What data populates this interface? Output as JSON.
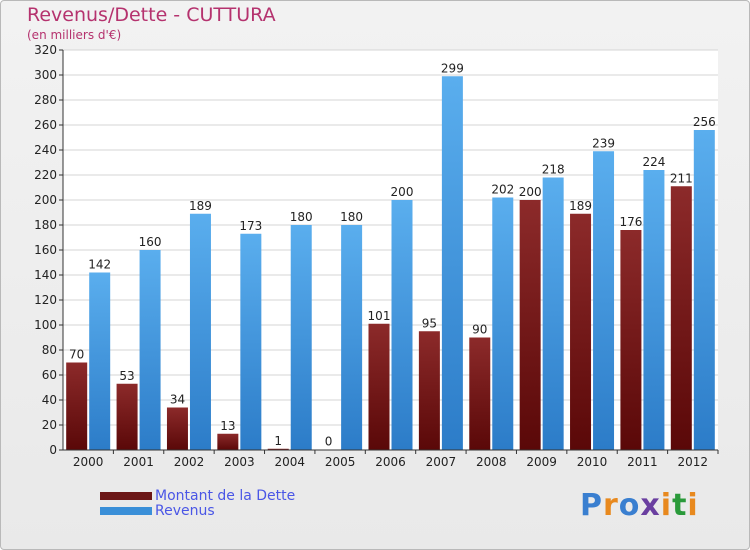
{
  "title": "Revenus/Dette - CUTTURA",
  "subtitle": "(en milliers d'€)",
  "logo": {
    "text": "Proxiti",
    "letters": [
      "P",
      "r",
      "o",
      "x",
      "i",
      "t",
      "i"
    ],
    "colors": [
      "#3a7fd0",
      "#e8891e",
      "#3a7fd0",
      "#6a3fa0",
      "#e8891e",
      "#2a9a3a",
      "#e8891e"
    ]
  },
  "colors": {
    "debt": "#6b1616",
    "revenue": "#3a8fd8"
  },
  "legend": [
    {
      "label": "Montant de la Dette",
      "color": "#6b1616"
    },
    {
      "label": "Revenus",
      "color": "#3a8fd8"
    }
  ],
  "chart_data": {
    "type": "bar",
    "title": "Revenus/Dette - CUTTURA",
    "subtitle": "(en milliers d'€)",
    "categories": [
      "2000",
      "2001",
      "2002",
      "2003",
      "2004",
      "2005",
      "2006",
      "2007",
      "2008",
      "2009",
      "2010",
      "2011",
      "2012"
    ],
    "series": [
      {
        "name": "Montant de la Dette",
        "values": [
          70,
          53,
          34,
          13,
          1,
          0,
          101,
          95,
          90,
          200,
          189,
          176,
          211
        ]
      },
      {
        "name": "Revenus",
        "values": [
          142,
          160,
          189,
          173,
          180,
          180,
          200,
          299,
          202,
          218,
          239,
          224,
          256
        ]
      }
    ],
    "ylim": [
      0,
      320
    ],
    "yticks": [
      0,
      20,
      40,
      60,
      80,
      100,
      120,
      140,
      160,
      180,
      200,
      220,
      240,
      260,
      280,
      300,
      320
    ],
    "grid": true,
    "legend_position": "bottom-left"
  }
}
